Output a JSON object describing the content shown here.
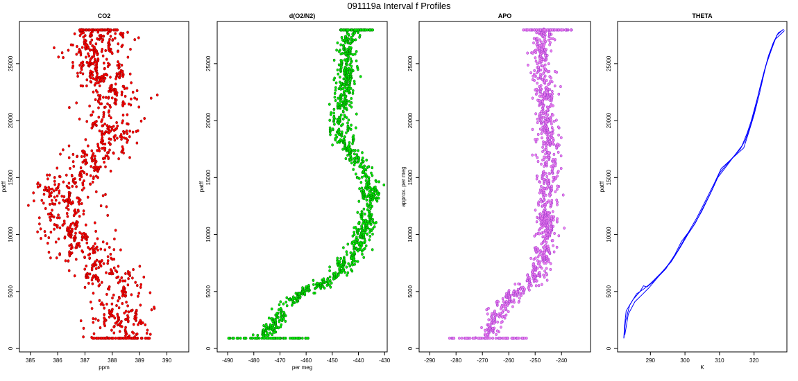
{
  "title": "091119a   Interval f Profiles",
  "chart_data": [
    {
      "type": "scatter",
      "title": "CO2",
      "xlabel": "ppm",
      "ylabel": "patff",
      "xlim": [
        384.6,
        390.8
      ],
      "ylim": [
        -300,
        28700
      ],
      "xticks": [
        385,
        386,
        387,
        388,
        389,
        390
      ],
      "yticks": [
        0,
        5000,
        10000,
        15000,
        20000,
        25000
      ],
      "color": "#ff0000",
      "spread": 0.9,
      "profile": [
        [
          900,
          388.3
        ],
        [
          2500,
          388.3
        ],
        [
          4500,
          388.1
        ],
        [
          6000,
          387.9
        ],
        [
          7000,
          387.5
        ],
        [
          8000,
          387.2
        ],
        [
          9000,
          386.8
        ],
        [
          10000,
          386.5
        ],
        [
          11000,
          386.3
        ],
        [
          12000,
          386.2
        ],
        [
          13000,
          386.2
        ],
        [
          14000,
          386.3
        ],
        [
          15000,
          386.6
        ],
        [
          16000,
          387.0
        ],
        [
          17000,
          387.4
        ],
        [
          18000,
          387.9
        ],
        [
          19000,
          388.0
        ],
        [
          20000,
          387.9
        ],
        [
          21000,
          388.0
        ],
        [
          22000,
          388.2
        ],
        [
          23000,
          388.0
        ],
        [
          24000,
          387.7
        ],
        [
          25000,
          387.5
        ],
        [
          26500,
          387.5
        ],
        [
          27900,
          387.5
        ]
      ],
      "top_cluster": [
        386.8,
        388.2
      ],
      "bottom_cluster": [
        387.2,
        389.4
      ]
    },
    {
      "type": "scatter",
      "title": "d(O2/N2)",
      "xlabel": "per meg",
      "ylabel": "patff",
      "xlim": [
        -494,
        -429
      ],
      "ylim": [
        -300,
        28700
      ],
      "xticks": [
        -490,
        -480,
        -470,
        -460,
        -450,
        -440,
        -430
      ],
      "yticks": [
        0,
        5000,
        10000,
        15000,
        20000,
        25000
      ],
      "color": "#00ee00",
      "spread": 3.0,
      "profile": [
        [
          900,
          -476
        ],
        [
          2000,
          -473
        ],
        [
          3500,
          -469
        ],
        [
          4500,
          -464
        ],
        [
          5500,
          -455
        ],
        [
          6500,
          -448
        ],
        [
          7500,
          -444
        ],
        [
          9000,
          -440
        ],
        [
          10500,
          -437
        ],
        [
          12000,
          -436
        ],
        [
          14000,
          -436
        ],
        [
          15500,
          -437
        ],
        [
          16500,
          -440
        ],
        [
          17500,
          -444
        ],
        [
          18500,
          -447
        ],
        [
          20000,
          -447
        ],
        [
          21500,
          -446
        ],
        [
          23000,
          -445
        ],
        [
          24500,
          -444
        ],
        [
          25500,
          -444
        ],
        [
          26500,
          -445
        ],
        [
          27900,
          -442
        ]
      ],
      "top_cluster": [
        -447,
        -434
      ],
      "bottom_cluster": [
        -490,
        -458
      ]
    },
    {
      "type": "scatter",
      "title": "APO",
      "xlabel": "",
      "ylabel": "approx. per meg",
      "xlim": [
        -294,
        -229
      ],
      "ylim": [
        -300,
        28700
      ],
      "xticks": [
        -290,
        -280,
        -270,
        -260,
        -250,
        -240
      ],
      "yticks": [
        0,
        5000,
        10000,
        15000,
        20000,
        25000
      ],
      "color": "#ee82ee",
      "spread": 3.2,
      "profile": [
        [
          900,
          -268
        ],
        [
          2000,
          -266
        ],
        [
          3500,
          -263
        ],
        [
          4500,
          -259
        ],
        [
          5500,
          -253
        ],
        [
          6500,
          -249
        ],
        [
          8000,
          -247
        ],
        [
          10000,
          -246
        ],
        [
          12000,
          -245
        ],
        [
          14000,
          -245
        ],
        [
          16000,
          -245
        ],
        [
          18000,
          -245
        ],
        [
          20000,
          -246
        ],
        [
          22000,
          -246
        ],
        [
          24000,
          -247
        ],
        [
          26000,
          -248
        ],
        [
          27900,
          -246
        ]
      ],
      "top_cluster": [
        -255,
        -236
      ],
      "bottom_cluster": [
        -283,
        -253
      ]
    },
    {
      "type": "line",
      "title": "THETA",
      "xlabel": "K",
      "ylabel": "patff",
      "xlim": [
        280.5,
        329.5
      ],
      "ylim": [
        -300,
        28700
      ],
      "xticks": [
        290,
        300,
        310,
        320
      ],
      "yticks": [
        0,
        5000,
        10000,
        15000,
        20000,
        25000
      ],
      "color": "#0000ff",
      "series": [
        {
          "points": [
            [
              282.3,
              900
            ],
            [
              282.5,
              2000
            ],
            [
              283.0,
              3300
            ],
            [
              285.0,
              4300
            ],
            [
              287.0,
              5000
            ],
            [
              288.0,
              5500
            ],
            [
              289.0,
              5400
            ],
            [
              291.0,
              5900
            ],
            [
              294.5,
              7000
            ],
            [
              297.0,
              8200
            ],
            [
              299.0,
              9400
            ],
            [
              301.0,
              10200
            ],
            [
              303.5,
              11500
            ],
            [
              306.0,
              13000
            ],
            [
              308.5,
              14500
            ],
            [
              310.5,
              15800
            ],
            [
              313.0,
              16500
            ],
            [
              315.5,
              17200
            ],
            [
              317.0,
              17600
            ],
            [
              318.5,
              19000
            ],
            [
              320.0,
              20500
            ],
            [
              321.5,
              22300
            ],
            [
              322.8,
              24000
            ],
            [
              324.0,
              25500
            ],
            [
              325.5,
              26800
            ],
            [
              327.0,
              27700
            ],
            [
              328.6,
              28000
            ]
          ]
        },
        {
          "points": [
            [
              282.3,
              900
            ],
            [
              282.8,
              2400
            ],
            [
              284.0,
              3800
            ],
            [
              286.0,
              4800
            ],
            [
              288.0,
              5200
            ],
            [
              290.0,
              5700
            ],
            [
              293.0,
              6600
            ],
            [
              296.0,
              7600
            ],
            [
              298.5,
              8800
            ],
            [
              300.8,
              10000
            ],
            [
              303.0,
              11000
            ],
            [
              305.5,
              12500
            ],
            [
              308.0,
              14000
            ],
            [
              310.0,
              15400
            ],
            [
              312.5,
              16300
            ],
            [
              314.5,
              17000
            ],
            [
              316.5,
              17800
            ],
            [
              318.0,
              18900
            ],
            [
              319.2,
              20000
            ],
            [
              320.8,
              21800
            ],
            [
              322.0,
              23200
            ],
            [
              323.4,
              24800
            ],
            [
              325.0,
              26200
            ],
            [
              326.6,
              27500
            ],
            [
              328.4,
              28000
            ]
          ]
        },
        {
          "points": [
            [
              282.6,
              1200
            ],
            [
              283.6,
              3000
            ],
            [
              285.5,
              4100
            ],
            [
              287.5,
              4700
            ],
            [
              289.5,
              5300
            ],
            [
              292.0,
              6200
            ],
            [
              295.0,
              7300
            ],
            [
              297.8,
              8500
            ],
            [
              300.0,
              9700
            ],
            [
              302.3,
              10700
            ],
            [
              304.8,
              12000
            ],
            [
              307.2,
              13500
            ],
            [
              309.5,
              15000
            ],
            [
              312.0,
              16000
            ],
            [
              314.0,
              16800
            ],
            [
              316.0,
              17500
            ],
            [
              317.5,
              18300
            ],
            [
              319.0,
              19600
            ],
            [
              320.4,
              21200
            ],
            [
              321.6,
              22800
            ],
            [
              322.9,
              24300
            ],
            [
              324.3,
              25800
            ],
            [
              326.0,
              27100
            ],
            [
              328.8,
              27900
            ]
          ]
        }
      ]
    }
  ]
}
